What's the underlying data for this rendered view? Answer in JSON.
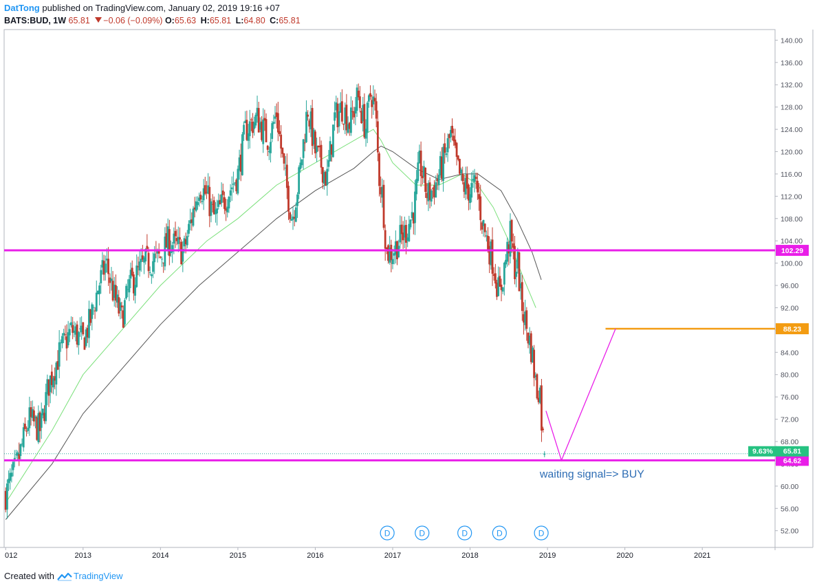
{
  "header": {
    "author": "DatTong",
    "published_text": "published on TradingView.com, January 02, 2019 19:16 +07"
  },
  "symbol_line": {
    "symbol": "BATS:BUD, 1W",
    "last": "65.81",
    "change": "−0.06 (−0.09%)",
    "o_label": "O:",
    "o": "65.63",
    "h_label": "H:",
    "h": "65.81",
    "l_label": "L:",
    "l": "64.80",
    "c_label": "C:",
    "c": "65.81"
  },
  "footer": {
    "created_with": "Created with",
    "brand": "TradingView"
  },
  "colors": {
    "up": "#26a69a",
    "down": "#c0392b",
    "ma_fast": "#7be07b",
    "ma_slow": "#555555",
    "magenta": "#e91ee8",
    "orange": "#f39c12",
    "badge_green": "#26c281",
    "dividend": "#2196f3"
  },
  "chart_data": {
    "type": "candlestick",
    "price_axis_ticks": [
      "140.00",
      "136.00",
      "132.00",
      "128.00",
      "124.00",
      "120.00",
      "116.00",
      "112.00",
      "108.00",
      "104.00",
      "100.00",
      "96.00",
      "92.00",
      "88.00",
      "84.00",
      "80.00",
      "76.00",
      "72.00",
      "68.00",
      "64.00",
      "60.00",
      "56.00",
      "52.00"
    ],
    "ylim": [
      49.0,
      141.9
    ],
    "time_axis_labels": [
      {
        "label": "012",
        "t": 2012.0
      },
      {
        "label": "2013",
        "t": 2013.0
      },
      {
        "label": "2014",
        "t": 2014.0
      },
      {
        "label": "2015",
        "t": 2015.0
      },
      {
        "label": "2016",
        "t": 2016.0
      },
      {
        "label": "2017",
        "t": 2017.0
      },
      {
        "label": "2018",
        "t": 2018.0
      },
      {
        "label": "2019",
        "t": 2019.0
      },
      {
        "label": "2020",
        "t": 2020.0
      },
      {
        "label": "2021",
        "t": 2021.0
      }
    ],
    "xlim": [
      2011.98,
      2021.94
    ],
    "price_path": [
      [
        2012.0,
        58.5
      ],
      [
        2012.15,
        64
      ],
      [
        2012.3,
        72
      ],
      [
        2012.45,
        70
      ],
      [
        2012.55,
        78
      ],
      [
        2012.7,
        84
      ],
      [
        2012.85,
        88
      ],
      [
        2013.0,
        86
      ],
      [
        2013.1,
        90
      ],
      [
        2013.2,
        96
      ],
      [
        2013.3,
        100
      ],
      [
        2013.4,
        94
      ],
      [
        2013.5,
        90
      ],
      [
        2013.6,
        96
      ],
      [
        2013.8,
        100
      ],
      [
        2014.0,
        101
      ],
      [
        2014.1,
        104
      ],
      [
        2014.3,
        102
      ],
      [
        2014.4,
        108
      ],
      [
        2014.5,
        114
      ],
      [
        2014.6,
        112
      ],
      [
        2014.7,
        108
      ],
      [
        2014.85,
        112
      ],
      [
        2015.0,
        116
      ],
      [
        2015.1,
        124
      ],
      [
        2015.25,
        126
      ],
      [
        2015.4,
        122
      ],
      [
        2015.5,
        127
      ],
      [
        2015.6,
        116
      ],
      [
        2015.7,
        108
      ],
      [
        2015.8,
        116
      ],
      [
        2015.9,
        128
      ],
      [
        2016.0,
        120
      ],
      [
        2016.1,
        117
      ],
      [
        2016.15,
        115
      ],
      [
        2016.25,
        126
      ],
      [
        2016.35,
        128
      ],
      [
        2016.45,
        125
      ],
      [
        2016.55,
        130
      ],
      [
        2016.65,
        124
      ],
      [
        2016.72,
        131
      ],
      [
        2016.78,
        127
      ],
      [
        2016.82,
        116
      ],
      [
        2016.87,
        112
      ],
      [
        2016.92,
        102
      ],
      [
        2017.0,
        102
      ],
      [
        2017.08,
        104
      ],
      [
        2017.18,
        106
      ],
      [
        2017.28,
        110
      ],
      [
        2017.35,
        118
      ],
      [
        2017.45,
        112
      ],
      [
        2017.55,
        114
      ],
      [
        2017.65,
        118
      ],
      [
        2017.75,
        123
      ],
      [
        2017.82,
        118
      ],
      [
        2017.9,
        114
      ],
      [
        2018.0,
        113
      ],
      [
        2018.08,
        114
      ],
      [
        2018.15,
        108
      ],
      [
        2018.22,
        104
      ],
      [
        2018.3,
        100
      ],
      [
        2018.38,
        94
      ],
      [
        2018.45,
        100
      ],
      [
        2018.52,
        105
      ],
      [
        2018.58,
        99
      ],
      [
        2018.62,
        100
      ],
      [
        2018.65,
        94
      ],
      [
        2018.72,
        89
      ],
      [
        2018.8,
        84
      ],
      [
        2018.86,
        77
      ],
      [
        2018.9,
        78
      ],
      [
        2018.93,
        70
      ],
      [
        2018.97,
        65.81
      ]
    ],
    "last_price": "65.81",
    "moving_averages": [
      {
        "points": [
          [
            2012.0,
            57
          ],
          [
            2012.6,
            70
          ],
          [
            2013.0,
            80
          ],
          [
            2013.5,
            88
          ],
          [
            2014.0,
            96
          ],
          [
            2014.6,
            104
          ],
          [
            2015.0,
            108
          ],
          [
            2015.5,
            114
          ],
          [
            2016.0,
            118
          ],
          [
            2016.5,
            122
          ],
          [
            2016.75,
            124
          ],
          [
            2016.85,
            122
          ],
          [
            2017.0,
            118
          ],
          [
            2017.3,
            114
          ],
          [
            2017.6,
            114
          ],
          [
            2017.9,
            116
          ],
          [
            2018.1,
            114
          ],
          [
            2018.3,
            110
          ],
          [
            2018.5,
            104
          ],
          [
            2018.7,
            97
          ],
          [
            2018.85,
            92
          ]
        ]
      },
      {
        "points": [
          [
            2012.0,
            54
          ],
          [
            2012.6,
            64
          ],
          [
            2013.0,
            73
          ],
          [
            2013.5,
            81
          ],
          [
            2014.0,
            89
          ],
          [
            2014.5,
            96
          ],
          [
            2015.0,
            102
          ],
          [
            2015.5,
            108
          ],
          [
            2016.0,
            113
          ],
          [
            2016.5,
            117
          ],
          [
            2016.75,
            120
          ],
          [
            2016.85,
            121
          ],
          [
            2017.0,
            120
          ],
          [
            2017.3,
            117
          ],
          [
            2017.6,
            115
          ],
          [
            2017.9,
            116
          ],
          [
            2018.1,
            116
          ],
          [
            2018.4,
            113
          ],
          [
            2018.6,
            108
          ],
          [
            2018.8,
            102
          ],
          [
            2018.92,
            97
          ]
        ]
      }
    ],
    "horizontal_levels": [
      {
        "value": 102.29,
        "label": "102.29",
        "color": "magenta"
      },
      {
        "value": 88.23,
        "label": "88.23",
        "color": "orange",
        "t_start": 2019.75
      },
      {
        "value": 64.62,
        "label": "64.62",
        "color": "magenta"
      }
    ],
    "projection_path": [
      [
        2018.98,
        73.5
      ],
      [
        2019.18,
        64.62
      ],
      [
        2019.88,
        88.23
      ]
    ],
    "annotation": {
      "text": "waiting signal=> BUY",
      "t": 2018.9,
      "value": 61.5
    },
    "badge": {
      "percent": "9.63%",
      "value": "65.81"
    },
    "dividends": {
      "symbol": "D",
      "t": [
        2016.93,
        2017.38,
        2017.93,
        2018.38,
        2018.92
      ]
    }
  }
}
